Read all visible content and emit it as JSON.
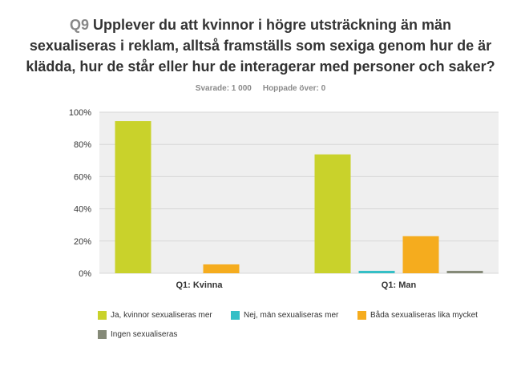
{
  "question": {
    "number": "Q9",
    "text_lines": [
      "Upplever du att kvinnor i högre utsträckning än män",
      "sexualiseras i reklam, alltså framställs som sexiga genom hur de är",
      "klädda, hur de står eller hur de interagerar med personer och saker?"
    ]
  },
  "stats": {
    "answered": "Svarade: 1 000",
    "skipped": "Hoppade över: 0"
  },
  "colors": {
    "plot_bg": "#efefef",
    "grid": "#d7d7d7"
  },
  "chart_data": {
    "type": "bar",
    "categories": [
      "Q1: Kvinna",
      "Q1: Man"
    ],
    "series": [
      {
        "name": "Ja, kvinnor sexualiseras mer",
        "color": "#c9d22b",
        "values": [
          94.5,
          73.8
        ]
      },
      {
        "name": "Nej, män sexualiseras mer",
        "color": "#35bfc6",
        "values": [
          0,
          1.5
        ]
      },
      {
        "name": "Båda sexualiseras lika mycket",
        "color": "#f5ac1e",
        "values": [
          5.5,
          23.0
        ]
      },
      {
        "name": "Ingen sexualiseras",
        "color": "#858a78",
        "values": [
          0,
          1.5
        ]
      }
    ],
    "yticks": [
      "0%",
      "20%",
      "40%",
      "60%",
      "80%",
      "100%"
    ],
    "ylim": [
      0,
      100
    ],
    "grid": true,
    "legend_position": "bottom"
  }
}
